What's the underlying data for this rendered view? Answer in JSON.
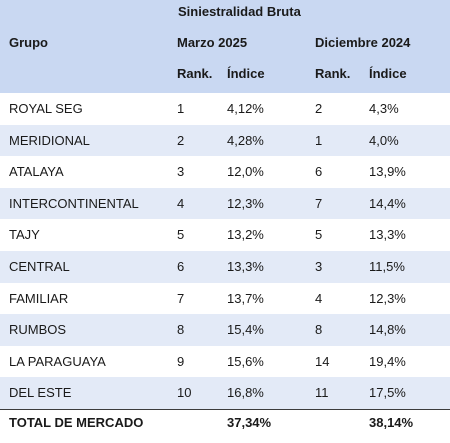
{
  "header": {
    "group_title": "Siniestralidad Bruta",
    "grupo_label": "Grupo",
    "period1": "Marzo 2025",
    "period2": "Diciembre 2024",
    "rank_label": "Rank.",
    "index_label": "Índice"
  },
  "rows": [
    {
      "grupo": "ROYAL SEG",
      "r1": "1",
      "i1": "4,12%",
      "r2": "2",
      "i2": "4,3%"
    },
    {
      "grupo": "MERIDIONAL",
      "r1": "2",
      "i1": "4,28%",
      "r2": "1",
      "i2": "4,0%"
    },
    {
      "grupo": "ATALAYA",
      "r1": "3",
      "i1": "12,0%",
      "r2": "6",
      "i2": "13,9%"
    },
    {
      "grupo": "INTERCONTINENTAL",
      "r1": "4",
      "i1": "12,3%",
      "r2": "7",
      "i2": "14,4%"
    },
    {
      "grupo": "TAJY",
      "r1": "5",
      "i1": "13,2%",
      "r2": "5",
      "i2": "13,3%"
    },
    {
      "grupo": "CENTRAL",
      "r1": "6",
      "i1": "13,3%",
      "r2": "3",
      "i2": "11,5%"
    },
    {
      "grupo": "FAMILIAR",
      "r1": "7",
      "i1": "13,7%",
      "r2": "4",
      "i2": "12,3%"
    },
    {
      "grupo": "RUMBOS",
      "r1": "8",
      "i1": "15,4%",
      "r2": "8",
      "i2": "14,8%"
    },
    {
      "grupo": "LA PARAGUAYA",
      "r1": "9",
      "i1": "15,6%",
      "r2": "14",
      "i2": "19,4%"
    },
    {
      "grupo": "DEL ESTE",
      "r1": "10",
      "i1": "16,8%",
      "r2": "11",
      "i2": "17,5%"
    }
  ],
  "total": {
    "label": "TOTAL DE MERCADO",
    "i1": "37,34%",
    "i2": "38,14%"
  },
  "colors": {
    "header_bg": "#c9d8f2",
    "stripe_bg": "#e3eaf7"
  }
}
